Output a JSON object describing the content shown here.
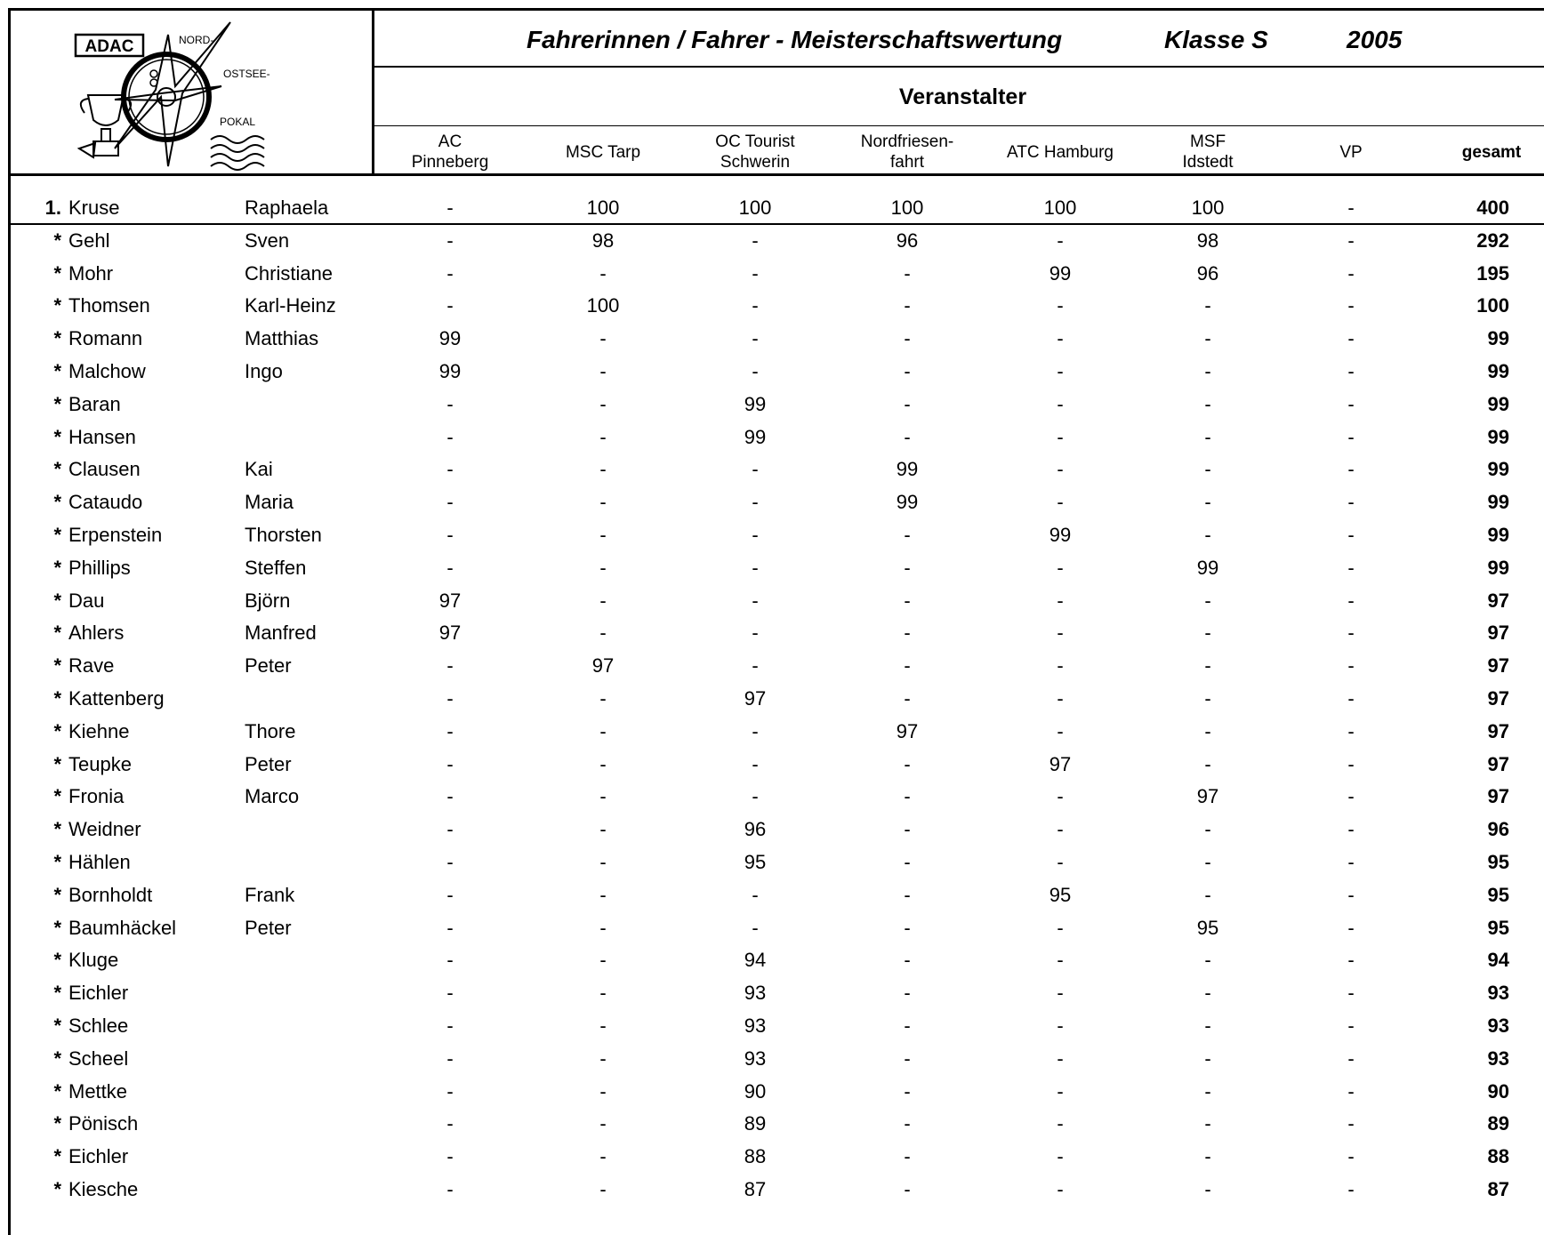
{
  "logo": {
    "brand": "ADAC",
    "line1": "NORD-",
    "line2": "OSTSEE-",
    "line3": "POKAL"
  },
  "header": {
    "title": "Fahrerinnen / Fahrer - Meisterschaftswertung",
    "class_label": "Klasse S",
    "year": "2005",
    "organizers_label": "Veranstalter"
  },
  "columns": [
    {
      "lines": [
        "AC",
        "Pinneberg"
      ]
    },
    {
      "lines": [
        "MSC Tarp"
      ]
    },
    {
      "lines": [
        "OC Tourist",
        "Schwerin"
      ]
    },
    {
      "lines": [
        "Nordfriesen-",
        "fahrt"
      ]
    },
    {
      "lines": [
        "ATC Hamburg"
      ]
    },
    {
      "lines": [
        "MSF",
        "Idstedt"
      ]
    },
    {
      "lines": [
        "VP"
      ]
    }
  ],
  "total_label": "gesamt",
  "rows": [
    {
      "rank": "1.",
      "last": "Kruse",
      "first": "Raphaela",
      "scores": [
        "-",
        "100",
        "100",
        "100",
        "100",
        "100",
        "-"
      ],
      "total": "400"
    },
    {
      "rank": "*",
      "last": "Gehl",
      "first": "Sven",
      "scores": [
        "-",
        "98",
        "-",
        "96",
        "-",
        "98",
        "-"
      ],
      "total": "292"
    },
    {
      "rank": "*",
      "last": "Mohr",
      "first": "Christiane",
      "scores": [
        "-",
        "-",
        "-",
        "-",
        "99",
        "96",
        "-"
      ],
      "total": "195"
    },
    {
      "rank": "*",
      "last": "Thomsen",
      "first": "Karl-Heinz",
      "scores": [
        "-",
        "100",
        "-",
        "-",
        "-",
        "-",
        "-"
      ],
      "total": "100"
    },
    {
      "rank": "*",
      "last": "Romann",
      "first": "Matthias",
      "scores": [
        "99",
        "-",
        "-",
        "-",
        "-",
        "-",
        "-"
      ],
      "total": "99"
    },
    {
      "rank": "*",
      "last": "Malchow",
      "first": "Ingo",
      "scores": [
        "99",
        "-",
        "-",
        "-",
        "-",
        "-",
        "-"
      ],
      "total": "99"
    },
    {
      "rank": "*",
      "last": "Baran",
      "first": "",
      "scores": [
        "-",
        "-",
        "99",
        "-",
        "-",
        "-",
        "-"
      ],
      "total": "99"
    },
    {
      "rank": "*",
      "last": "Hansen",
      "first": "",
      "scores": [
        "-",
        "-",
        "99",
        "-",
        "-",
        "-",
        "-"
      ],
      "total": "99"
    },
    {
      "rank": "*",
      "last": "Clausen",
      "first": "Kai",
      "scores": [
        "-",
        "-",
        "-",
        "99",
        "-",
        "-",
        "-"
      ],
      "total": "99"
    },
    {
      "rank": "*",
      "last": "Cataudo",
      "first": "Maria",
      "scores": [
        "-",
        "-",
        "-",
        "99",
        "-",
        "-",
        "-"
      ],
      "total": "99"
    },
    {
      "rank": "*",
      "last": "Erpenstein",
      "first": "Thorsten",
      "scores": [
        "-",
        "-",
        "-",
        "-",
        "99",
        "-",
        "-"
      ],
      "total": "99"
    },
    {
      "rank": "*",
      "last": "Phillips",
      "first": "Steffen",
      "scores": [
        "-",
        "-",
        "-",
        "-",
        "-",
        "99",
        "-"
      ],
      "total": "99"
    },
    {
      "rank": "*",
      "last": "Dau",
      "first": "Björn",
      "scores": [
        "97",
        "-",
        "-",
        "-",
        "-",
        "-",
        "-"
      ],
      "total": "97"
    },
    {
      "rank": "*",
      "last": "Ahlers",
      "first": "Manfred",
      "scores": [
        "97",
        "-",
        "-",
        "-",
        "-",
        "-",
        "-"
      ],
      "total": "97"
    },
    {
      "rank": "*",
      "last": "Rave",
      "first": "Peter",
      "scores": [
        "-",
        "97",
        "-",
        "-",
        "-",
        "-",
        "-"
      ],
      "total": "97"
    },
    {
      "rank": "*",
      "last": "Kattenberg",
      "first": "",
      "scores": [
        "-",
        "-",
        "97",
        "-",
        "-",
        "-",
        "-"
      ],
      "total": "97"
    },
    {
      "rank": "*",
      "last": "Kiehne",
      "first": "Thore",
      "scores": [
        "-",
        "-",
        "-",
        "97",
        "-",
        "-",
        "-"
      ],
      "total": "97"
    },
    {
      "rank": "*",
      "last": "Teupke",
      "first": "Peter",
      "scores": [
        "-",
        "-",
        "-",
        "-",
        "97",
        "-",
        "-"
      ],
      "total": "97"
    },
    {
      "rank": "*",
      "last": "Fronia",
      "first": "Marco",
      "scores": [
        "-",
        "-",
        "-",
        "-",
        "-",
        "97",
        "-"
      ],
      "total": "97"
    },
    {
      "rank": "*",
      "last": "Weidner",
      "first": "",
      "scores": [
        "-",
        "-",
        "96",
        "-",
        "-",
        "-",
        "-"
      ],
      "total": "96"
    },
    {
      "rank": "*",
      "last": "Hählen",
      "first": "",
      "scores": [
        "-",
        "-",
        "95",
        "-",
        "-",
        "-",
        "-"
      ],
      "total": "95"
    },
    {
      "rank": "*",
      "last": "Bornholdt",
      "first": "Frank",
      "scores": [
        "-",
        "-",
        "-",
        "-",
        "95",
        "-",
        "-"
      ],
      "total": "95"
    },
    {
      "rank": "*",
      "last": "Baumhäckel",
      "first": "Peter",
      "scores": [
        "-",
        "-",
        "-",
        "-",
        "-",
        "95",
        "-"
      ],
      "total": "95"
    },
    {
      "rank": "*",
      "last": "Kluge",
      "first": "",
      "scores": [
        "-",
        "-",
        "94",
        "-",
        "-",
        "-",
        "-"
      ],
      "total": "94"
    },
    {
      "rank": "*",
      "last": "Eichler",
      "first": "",
      "scores": [
        "-",
        "-",
        "93",
        "-",
        "-",
        "-",
        "-"
      ],
      "total": "93"
    },
    {
      "rank": "*",
      "last": "Schlee",
      "first": "",
      "scores": [
        "-",
        "-",
        "93",
        "-",
        "-",
        "-",
        "-"
      ],
      "total": "93"
    },
    {
      "rank": "*",
      "last": "Scheel",
      "first": "",
      "scores": [
        "-",
        "-",
        "93",
        "-",
        "-",
        "-",
        "-"
      ],
      "total": "93"
    },
    {
      "rank": "*",
      "last": "Mettke",
      "first": "",
      "scores": [
        "-",
        "-",
        "90",
        "-",
        "-",
        "-",
        "-"
      ],
      "total": "90"
    },
    {
      "rank": "*",
      "last": "Pönisch",
      "first": "",
      "scores": [
        "-",
        "-",
        "89",
        "-",
        "-",
        "-",
        "-"
      ],
      "total": "89"
    },
    {
      "rank": "*",
      "last": "Eichler",
      "first": "",
      "scores": [
        "-",
        "-",
        "88",
        "-",
        "-",
        "-",
        "-"
      ],
      "total": "88"
    },
    {
      "rank": "*",
      "last": "Kiesche",
      "first": "",
      "scores": [
        "-",
        "-",
        "87",
        "-",
        "-",
        "-",
        "-"
      ],
      "total": "87"
    }
  ]
}
